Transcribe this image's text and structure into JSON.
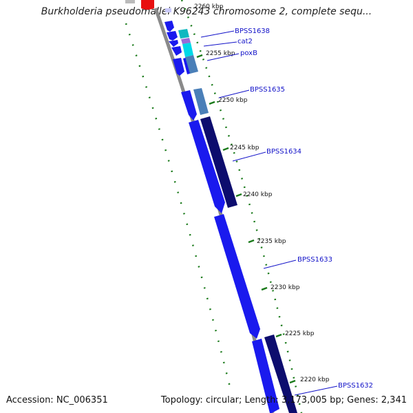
{
  "title": "Burkholderia pseudomallei K96243 chromosome 2, complete sequ...",
  "footer": {
    "accession_label": "Accession: NC_006351",
    "stats_label": "Topology: circular; Length: 3,173,005 bp; Genes: 2,341"
  },
  "colors": {
    "backbone": "#8a8a8a",
    "forward_gene": "#1a1aee",
    "reverse_gene": "#0d0d6e",
    "tick": "#1a7a1a",
    "label_line": "#1010c8",
    "cyan_gene": "#00d8e8",
    "teal_gene": "#10b8c0",
    "violet_gene": "#9a6ad8",
    "steel_gene": "#4a7fb8",
    "red_marker": "#e81010"
  },
  "kbp_ticks": [
    {
      "label": "2260 kbp",
      "faded": true
    },
    {
      "label": "2255 kbp"
    },
    {
      "label": "2250 kbp"
    },
    {
      "label": "2245 kbp"
    },
    {
      "label": "2240 kbp"
    },
    {
      "label": "2235 kbp"
    },
    {
      "label": "2230 kbp"
    },
    {
      "label": "2225 kbp"
    },
    {
      "label": "2220 kbp"
    }
  ],
  "gene_labels": [
    {
      "label": "BPSS1638"
    },
    {
      "label": "cat2"
    },
    {
      "label": "poxB"
    },
    {
      "label": "BPSS1635"
    },
    {
      "label": "BPSS1634"
    },
    {
      "label": "BPSS1633"
    },
    {
      "label": "BPSS1632"
    }
  ]
}
